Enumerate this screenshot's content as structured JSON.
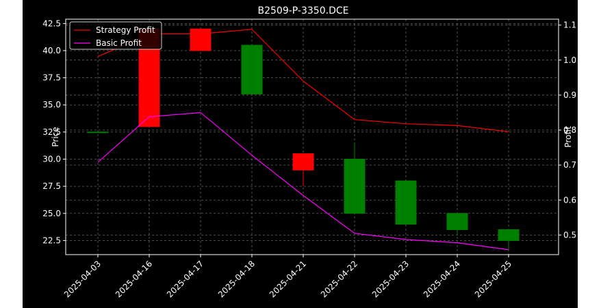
{
  "chart_data": {
    "type": "candlestick",
    "title": "B2509-P-3350.DCE",
    "xlabel": "",
    "ylabel": "Price",
    "y2label": "Profit",
    "categories": [
      "2025-04-03",
      "2025-04-16",
      "2025-04-17",
      "2025-04-18",
      "2025-04-21",
      "2025-04-22",
      "2025-04-23",
      "2025-04-24",
      "2025-04-25"
    ],
    "ylim": [
      21.2,
      42.9
    ],
    "y2lim": [
      0.444,
      1.117
    ],
    "yticks": [
      22.5,
      25.0,
      27.5,
      30.0,
      32.5,
      35.0,
      37.5,
      40.0,
      42.5
    ],
    "y2ticks": [
      0.5,
      0.6,
      0.7,
      0.8,
      0.9,
      1.0,
      1.1
    ],
    "grid": true,
    "legend_position": "top-left",
    "candles": [
      {
        "date": "2025-04-03",
        "open": 32.5,
        "high": 32.5,
        "low": 32.5,
        "close": 32.5
      },
      {
        "date": "2025-04-16",
        "open": 42.0,
        "high": 42.0,
        "low": 33.0,
        "close": 33.0
      },
      {
        "date": "2025-04-17",
        "open": 42.0,
        "high": 42.0,
        "low": 40.0,
        "close": 40.0
      },
      {
        "date": "2025-04-18",
        "open": 36.0,
        "high": 40.5,
        "low": 36.0,
        "close": 40.5
      },
      {
        "date": "2025-04-21",
        "open": 30.5,
        "high": 30.5,
        "low": 27.5,
        "close": 29.0
      },
      {
        "date": "2025-04-22",
        "open": 25.0,
        "high": 31.5,
        "low": 25.0,
        "close": 30.0
      },
      {
        "date": "2025-04-23",
        "open": 24.0,
        "high": 28.0,
        "low": 24.0,
        "close": 28.0
      },
      {
        "date": "2025-04-24",
        "open": 23.5,
        "high": 25.0,
        "low": 23.0,
        "close": 25.0
      },
      {
        "date": "2025-04-25",
        "open": 22.5,
        "high": 23.6,
        "low": 21.5,
        "close": 23.5
      }
    ],
    "series": [
      {
        "name": "Strategy Profit",
        "color": "#ff0000",
        "axis": "right",
        "values": [
          1.01,
          1.075,
          1.075,
          1.088,
          0.94,
          0.83,
          0.818,
          0.813,
          0.795
        ]
      },
      {
        "name": "Basic Profit",
        "color": "#ff00ff",
        "axis": "right",
        "values": [
          0.708,
          0.838,
          0.85,
          0.728,
          0.613,
          0.505,
          0.487,
          0.478,
          0.458
        ]
      }
    ],
    "colors": {
      "up": "#008000",
      "down": "#ff0000",
      "background": "#000000",
      "text": "#ffffff",
      "grid": "#808080"
    }
  }
}
